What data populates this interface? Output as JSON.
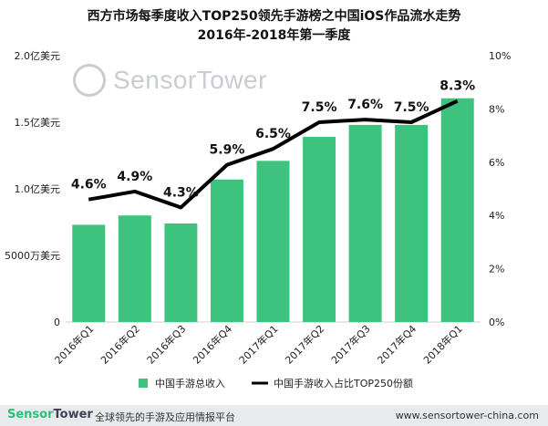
{
  "title_line1": "西方市场每季度收入TOP250领先手游榜之中国iOS作品流水走势",
  "title_line2": "2016年-2018年第一季度",
  "watermark": "SensorTower",
  "footer": {
    "logo_a": "Sensor",
    "logo_b": "Tower",
    "slogan": "全球领先的手游及应用情报平台",
    "url": "www.sensortower-china.com"
  },
  "chart_data": {
    "type": "bar",
    "categories": [
      "2016年Q1",
      "2016年Q2",
      "2016年Q3",
      "2016年Q4",
      "2017年Q1",
      "2017年Q2",
      "2017年Q3",
      "2017年Q4",
      "2018年Q1"
    ],
    "series": [
      {
        "name": "中国手游总收入",
        "type": "bar",
        "axis": "left",
        "unit": "亿美元",
        "color": "#3ec37f",
        "values": [
          0.73,
          0.8,
          0.74,
          1.07,
          1.21,
          1.39,
          1.48,
          1.48,
          1.68
        ]
      },
      {
        "name": "中国手游收入占比TOP250份额",
        "type": "line",
        "axis": "right",
        "unit": "%",
        "color": "#000000",
        "values": [
          4.6,
          4.9,
          4.3,
          5.9,
          6.5,
          7.5,
          7.6,
          7.5,
          8.3
        ],
        "labels": [
          "4.6%",
          "4.9%",
          "4.3%",
          "5.9%",
          "6.5%",
          "7.5%",
          "7.6%",
          "7.5%",
          "8.3%"
        ]
      }
    ],
    "left_axis": {
      "ylim": [
        0,
        2.0
      ],
      "ticks": [
        0,
        0.5,
        1.0,
        1.5,
        2.0
      ],
      "tick_labels": [
        "0",
        "5000万美元",
        "1.0亿美元",
        "1.5亿美元",
        "2.0亿美元"
      ]
    },
    "right_axis": {
      "ylim": [
        0,
        10
      ],
      "ticks": [
        0,
        2,
        4,
        6,
        8,
        10
      ],
      "tick_labels": [
        "0%",
        "2%",
        "4%",
        "6%",
        "8%",
        "10%"
      ]
    },
    "grid": false,
    "legend_position": "bottom"
  }
}
